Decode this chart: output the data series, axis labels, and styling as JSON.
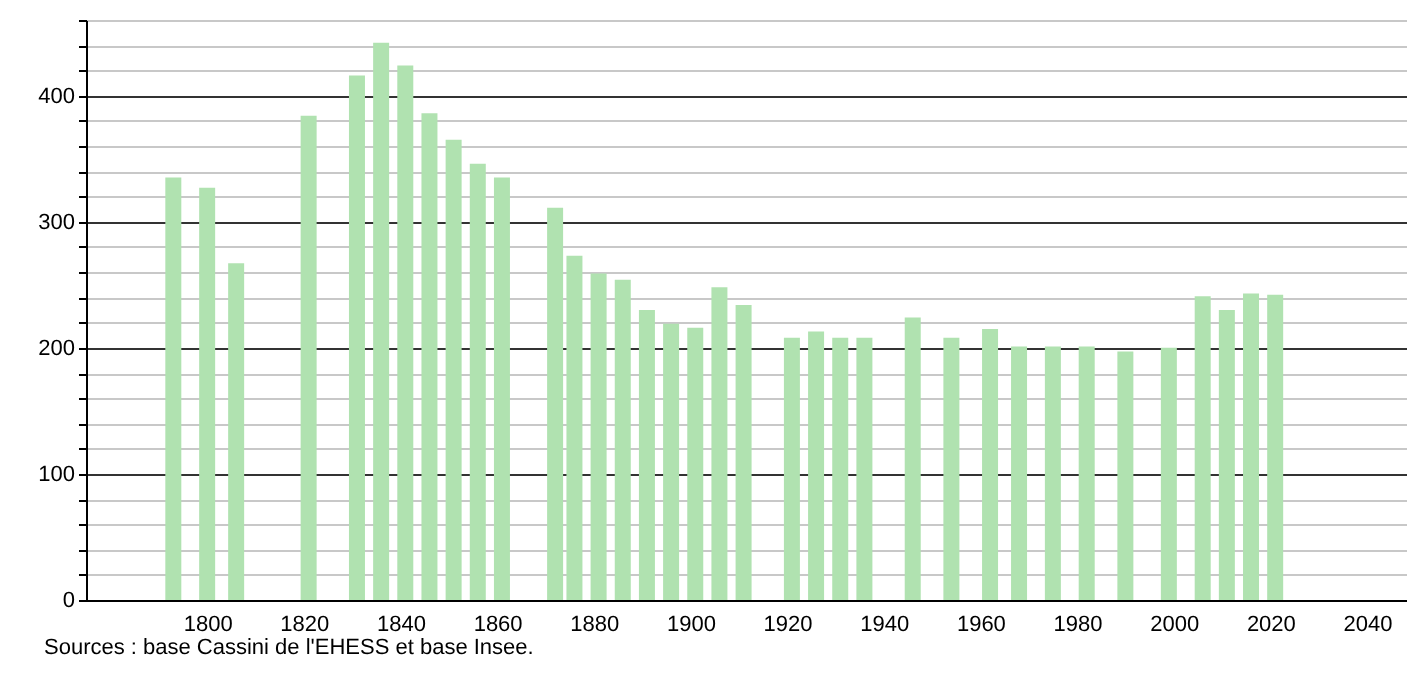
{
  "chart_data": {
    "type": "bar",
    "x": [
      1793,
      1800,
      1806,
      1821,
      1831,
      1836,
      1841,
      1846,
      1851,
      1856,
      1861,
      1872,
      1876,
      1881,
      1886,
      1891,
      1896,
      1901,
      1906,
      1911,
      1921,
      1926,
      1931,
      1936,
      1946,
      1954,
      1962,
      1968,
      1975,
      1982,
      1990,
      1999,
      2006,
      2011,
      2016,
      2021
    ],
    "values": [
      335,
      327,
      267,
      384,
      416,
      442,
      424,
      386,
      365,
      346,
      335,
      311,
      273,
      259,
      254,
      230,
      219,
      216,
      248,
      234,
      208,
      213,
      208,
      208,
      224,
      208,
      215,
      201,
      201,
      201,
      197,
      200,
      241,
      230,
      243,
      242
    ],
    "color": "#b0e2b0",
    "xlim": [
      1777,
      2046
    ],
    "xticks": [
      1800,
      1820,
      1840,
      1860,
      1880,
      1900,
      1920,
      1940,
      1960,
      1980,
      2000,
      2020,
      2040
    ],
    "ylim": [
      0,
      460
    ],
    "yticks": [
      0,
      {
        "value": 20,
        "label": null
      },
      {
        "value": 40,
        "label": null
      },
      {
        "value": 60,
        "label": null
      },
      {
        "value": 80,
        "label": null
      },
      100,
      {
        "value": 120,
        "label": null
      },
      {
        "value": 140,
        "label": null
      },
      {
        "value": 160,
        "label": null
      },
      {
        "value": 180,
        "label": null
      },
      200,
      {
        "value": 220,
        "label": null
      },
      {
        "value": 240,
        "label": null
      },
      {
        "value": 260,
        "label": null
      },
      {
        "value": 280,
        "label": null
      },
      300,
      {
        "value": 320,
        "label": null
      },
      {
        "value": 340,
        "label": null
      },
      {
        "value": 360,
        "label": null
      },
      {
        "value": 380,
        "label": null
      },
      400,
      {
        "value": 420,
        "label": null
      },
      {
        "value": 440,
        "label": null
      },
      {
        "value": 460,
        "label": null
      }
    ],
    "grid": "y",
    "annotations": [
      "Sources : base Cassini de l'EHESS et base Insee."
    ]
  }
}
